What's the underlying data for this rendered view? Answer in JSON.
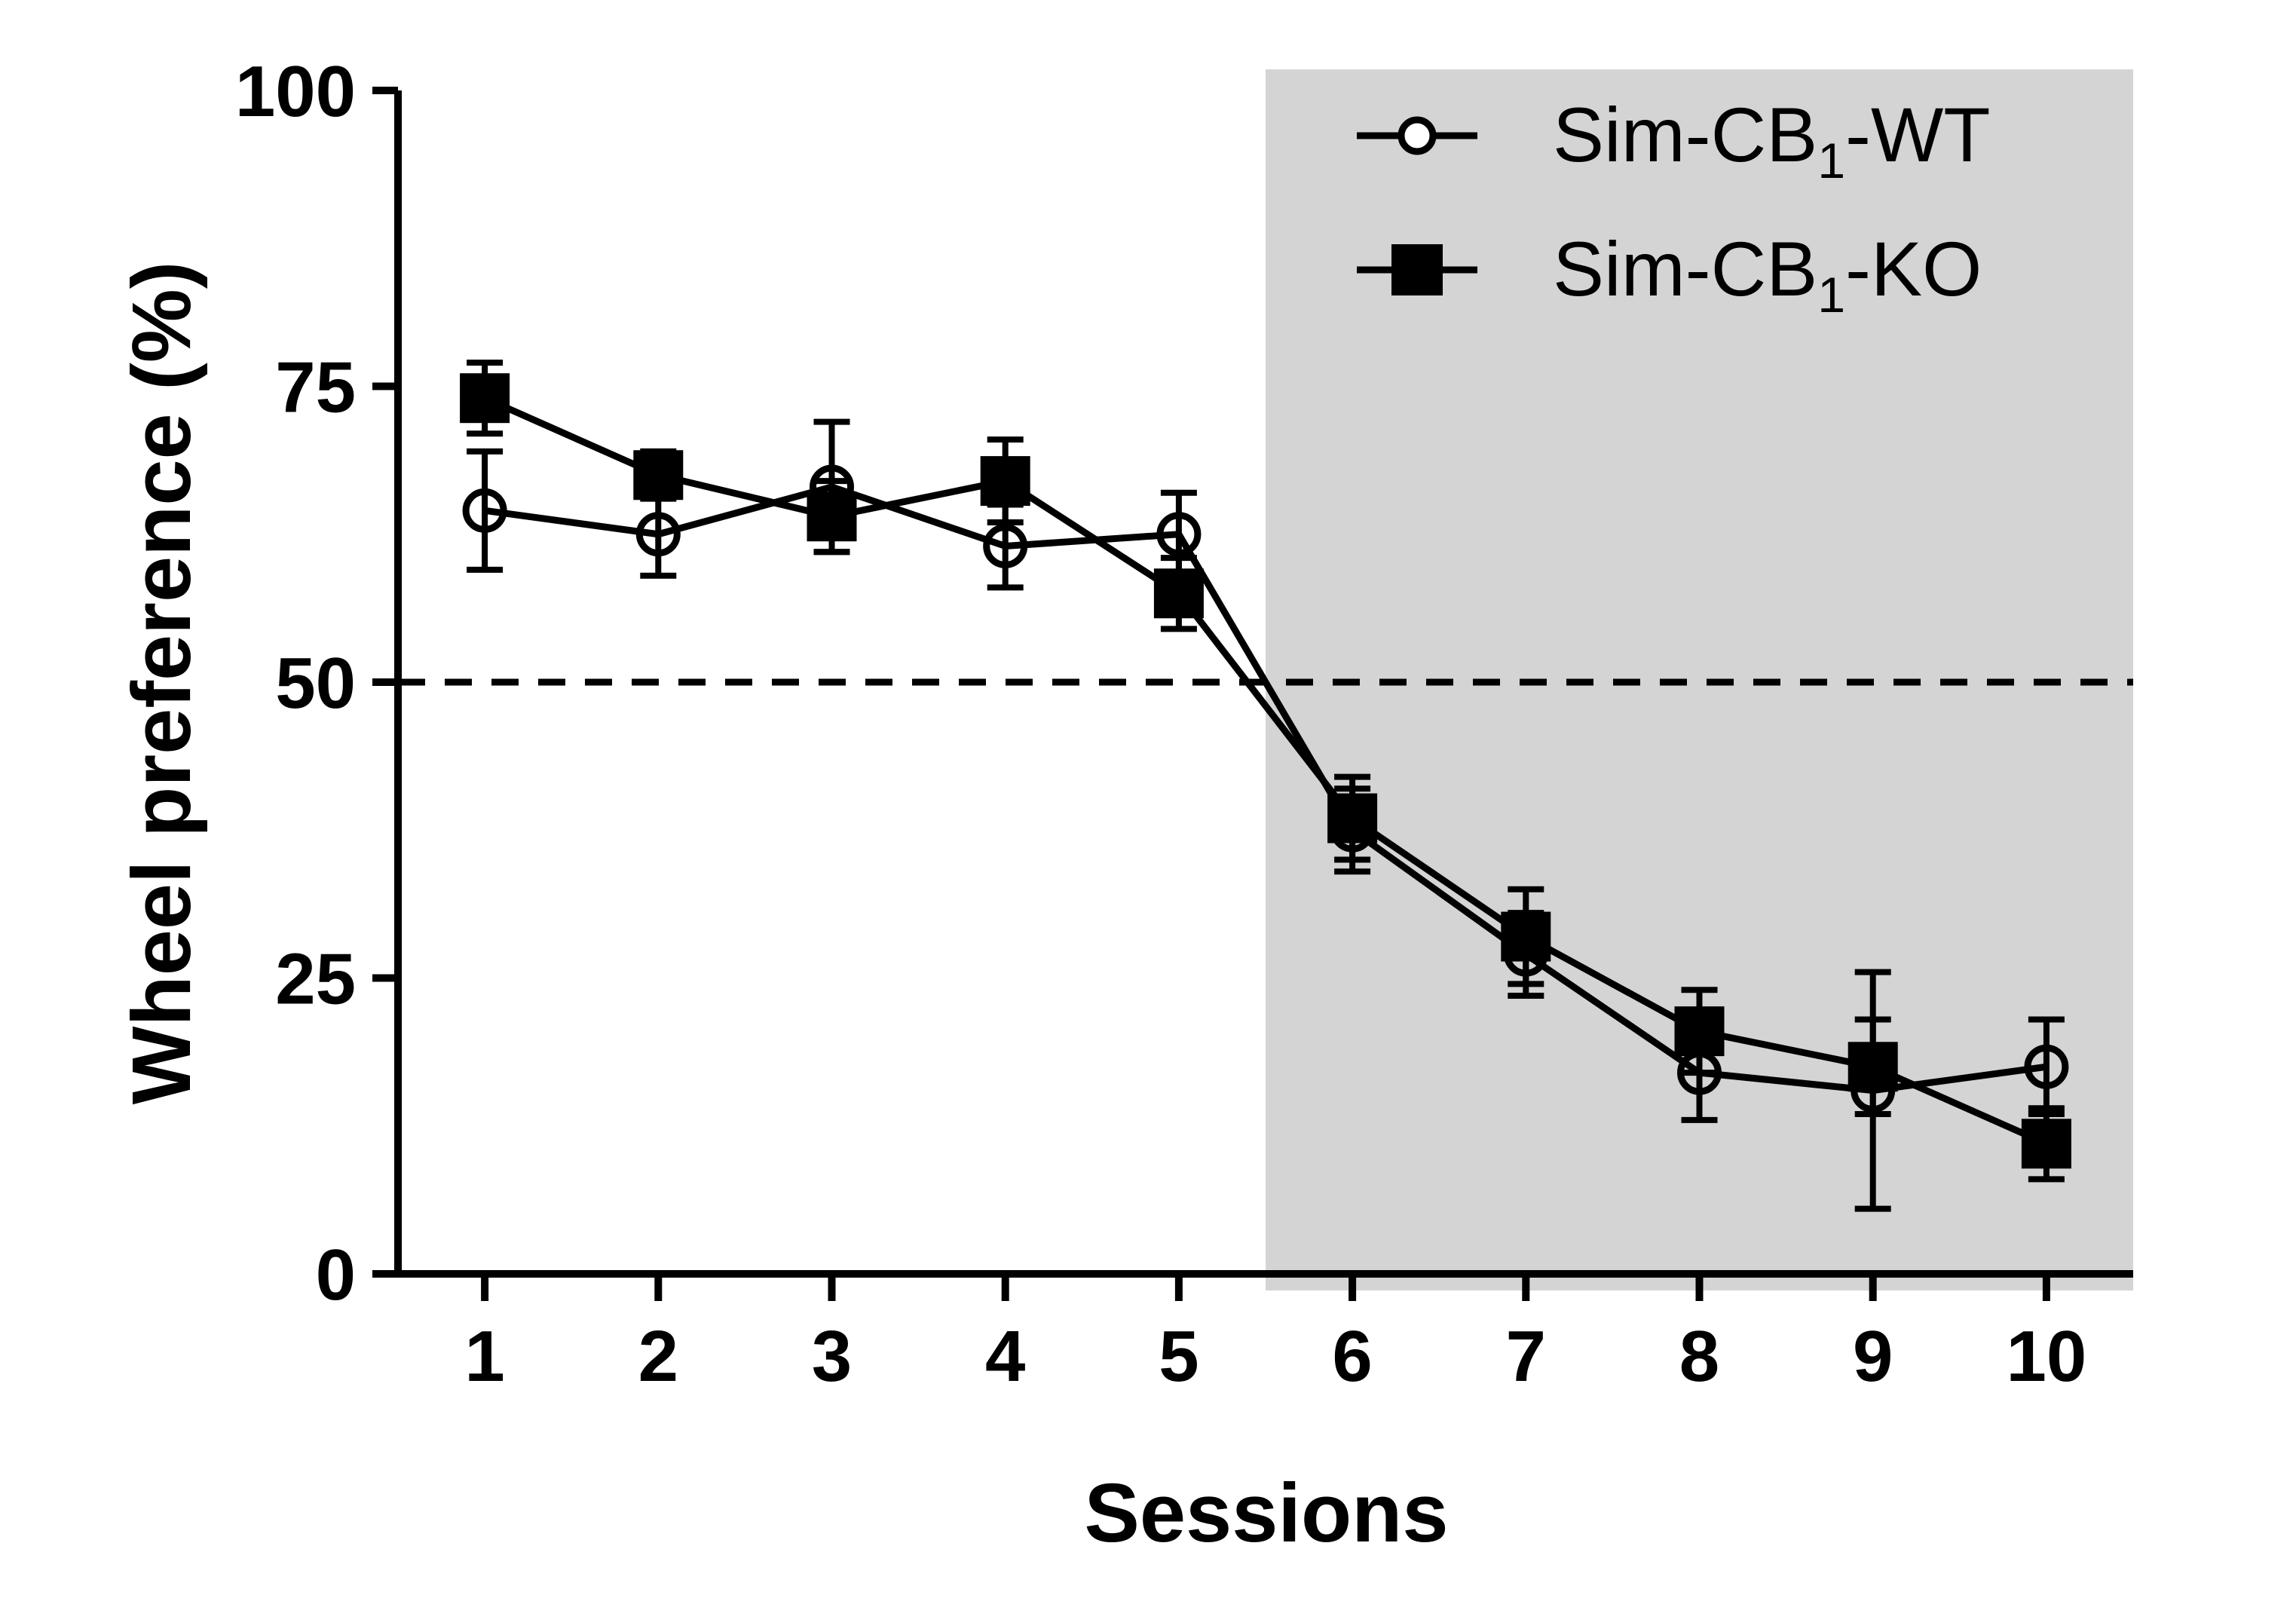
{
  "chart_data": {
    "type": "line",
    "xlabel": "Sessions",
    "ylabel": "Wheel preference (%)",
    "x": [
      1,
      2,
      3,
      4,
      5,
      6,
      7,
      8,
      9,
      10
    ],
    "xlim": [
      0.5,
      10.5
    ],
    "ylim": [
      0,
      100
    ],
    "yticks": [
      0,
      25,
      50,
      75,
      100
    ],
    "grid": false,
    "reference_line": {
      "y": 50,
      "style": "dashed"
    },
    "shaded_region": {
      "x_from": 5.5,
      "x_to": 10.5,
      "color": "#d4d4d4"
    },
    "legend_position": "top-right",
    "series": [
      {
        "name": "Sim-CB",
        "name_subscript": "1",
        "name_suffix": "-WT",
        "marker": "open-circle",
        "values": [
          64.5,
          62.5,
          66.5,
          61.5,
          62.5,
          37.5,
          27,
          17,
          15.5,
          17.5
        ],
        "error": [
          5,
          3.5,
          5.5,
          3.5,
          3.5,
          3.5,
          3.5,
          4,
          10,
          4
        ]
      },
      {
        "name": "Sim-CB",
        "name_subscript": "1",
        "name_suffix": "-KO",
        "marker": "filled-square",
        "values": [
          74,
          67.5,
          64,
          67,
          57.5,
          38.5,
          28.5,
          20.5,
          17.5,
          11
        ],
        "error": [
          3,
          2,
          3,
          3.5,
          3,
          3.5,
          4,
          3.5,
          4,
          3
        ]
      }
    ]
  }
}
